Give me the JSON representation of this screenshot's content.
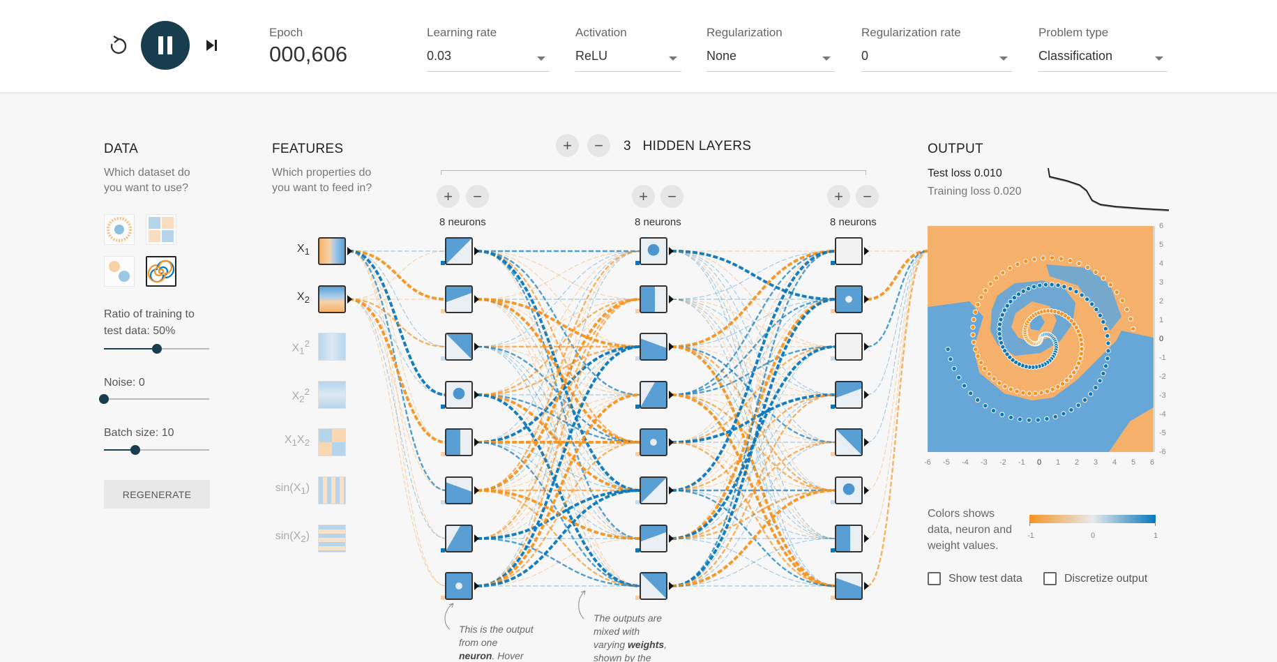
{
  "controls": {
    "reset_icon": "reset-icon",
    "play_icon": "pause-icon",
    "step_icon": "step-forward-icon",
    "epoch_label": "Epoch",
    "epoch_value": "000,606",
    "learning_rate": {
      "label": "Learning rate",
      "value": "0.03"
    },
    "activation": {
      "label": "Activation",
      "value": "ReLU"
    },
    "regularization": {
      "label": "Regularization",
      "value": "None"
    },
    "regularization_rate": {
      "label": "Regularization rate",
      "value": "0"
    },
    "problem_type": {
      "label": "Problem type",
      "value": "Classification"
    }
  },
  "data": {
    "title": "DATA",
    "subtitle_1": "Which dataset do",
    "subtitle_2": "you want to use?",
    "ratio_label_1": "Ratio of training to",
    "ratio_label_2": "test data:",
    "ratio_value": "50%",
    "ratio_fraction": 0.5,
    "noise_label": "Noise:",
    "noise_value": "0",
    "noise_fraction": 0,
    "batch_label": "Batch size:",
    "batch_value": "10",
    "batch_fraction": 0.3,
    "regenerate": "REGENERATE"
  },
  "features": {
    "title": "FEATURES",
    "subtitle_1": "Which properties do",
    "subtitle_2": "you want to feed in?",
    "items": [
      {
        "base": "X",
        "sub": "1",
        "sup": "",
        "active": true
      },
      {
        "base": "X",
        "sub": "2",
        "sup": "",
        "active": true
      },
      {
        "base": "X",
        "sub": "1",
        "sup": "2",
        "active": false
      },
      {
        "base": "X",
        "sub": "2",
        "sup": "2",
        "active": false
      },
      {
        "base": "X",
        "sub": "1",
        "base2": "X",
        "sub2": "2",
        "active": false
      },
      {
        "base": "sin(X",
        "sub": "1",
        "close": ")",
        "active": false
      },
      {
        "base": "sin(X",
        "sub": "2",
        "close": ")",
        "active": false
      }
    ]
  },
  "hidden": {
    "count": "3",
    "title": "HIDDEN LAYERS",
    "plus": "+",
    "minus": "−",
    "layers": [
      {
        "neurons_label": "8 neurons"
      },
      {
        "neurons_label": "8 neurons"
      },
      {
        "neurons_label": "8 neurons"
      }
    ]
  },
  "output": {
    "title": "OUTPUT",
    "test_loss": "Test loss 0.010",
    "training_loss": "Training loss 0.020",
    "y_ticks": [
      "6",
      "5",
      "4",
      "3",
      "2",
      "1",
      "0",
      "-1",
      "-2",
      "-3",
      "-4",
      "-5",
      "-6"
    ],
    "x_ticks": [
      "-6",
      "-5",
      "-4",
      "-3",
      "-2",
      "-1",
      "0",
      "1",
      "2",
      "3",
      "4",
      "5",
      "6"
    ],
    "legend_text_1": "Colors shows",
    "legend_text_2": "data, neuron and",
    "legend_text_3": "weight values.",
    "legend_min": "-1",
    "legend_mid": "0",
    "legend_max": "1",
    "show_test_data": "Show test data",
    "discretize_output": "Discretize output"
  },
  "notes": {
    "note1_a": "This is the output",
    "note1_b": "from one",
    "note1_c": "neuron",
    "note1_d": ". Hover",
    "note2_a": "The outputs are",
    "note2_b": "mixed with",
    "note2_c": "varying ",
    "note2_d": "weights",
    "note2_e": ",",
    "note2_f": "shown by the"
  },
  "colors": {
    "orange": "#f59322",
    "blue": "#0877bd",
    "dark": "#183d4e",
    "light_orange": "#f5b16c",
    "light_blue": "#66a7d8"
  }
}
